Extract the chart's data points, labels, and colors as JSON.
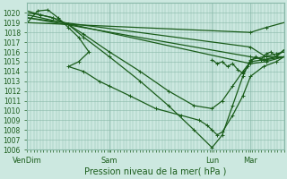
{
  "title": "",
  "xlabel": "Pression niveau de la mer( hPa )",
  "ylabel": "",
  "bg_color": "#cce8e0",
  "grid_color": "#88b8a8",
  "line_color": "#1a5c1a",
  "ylim": [
    1006,
    1021
  ],
  "yticks": [
    1006,
    1007,
    1008,
    1009,
    1010,
    1011,
    1012,
    1013,
    1014,
    1015,
    1016,
    1017,
    1018,
    1019,
    1020
  ],
  "xtick_labels": [
    "VenDim",
    "Sam",
    "Lun",
    "Mar"
  ],
  "xtick_positions": [
    0.0,
    0.32,
    0.72,
    0.87
  ],
  "series": [
    {
      "x": [
        0.0,
        0.87,
        0.93,
        1.0
      ],
      "y": [
        1019.0,
        1018.0,
        1018.5,
        1019.0
      ]
    },
    {
      "x": [
        0.0,
        0.87,
        0.93,
        1.0
      ],
      "y": [
        1019.5,
        1016.5,
        1015.5,
        1015.5
      ]
    },
    {
      "x": [
        0.0,
        0.87,
        0.93,
        1.0
      ],
      "y": [
        1019.5,
        1015.5,
        1015.2,
        1015.5
      ]
    },
    {
      "x": [
        0.0,
        0.87,
        0.93,
        1.0
      ],
      "y": [
        1019.8,
        1014.8,
        1015.0,
        1015.5
      ]
    },
    {
      "x": [
        0.0,
        0.05,
        0.1,
        0.16,
        0.22,
        0.32,
        0.44,
        0.55,
        0.65,
        0.72,
        0.76,
        0.8,
        0.84,
        0.87,
        0.92,
        0.97,
        1.0
      ],
      "y": [
        1020.0,
        1019.8,
        1019.5,
        1018.8,
        1017.5,
        1015.5,
        1013.0,
        1010.5,
        1008.0,
        1006.2,
        1007.5,
        1010.5,
        1013.5,
        1015.2,
        1015.5,
        1015.8,
        1016.0
      ]
    },
    {
      "x": [
        0.0,
        0.05,
        0.1,
        0.16,
        0.22,
        0.32,
        0.44,
        0.55,
        0.65,
        0.72,
        0.76,
        0.8,
        0.84,
        0.87,
        0.92,
        0.97,
        1.0
      ],
      "y": [
        1020.2,
        1019.8,
        1019.5,
        1018.8,
        1017.8,
        1016.0,
        1014.0,
        1012.0,
        1010.5,
        1010.2,
        1011.0,
        1012.5,
        1014.0,
        1015.0,
        1015.2,
        1015.5,
        1016.2
      ]
    },
    {
      "x": [
        0.0,
        0.04,
        0.08,
        0.12,
        0.16,
        0.2,
        0.24,
        0.2,
        0.16,
        0.22,
        0.28,
        0.32,
        0.4,
        0.5,
        0.6,
        0.67,
        0.7,
        0.72,
        0.74,
        0.76,
        0.8,
        0.84,
        0.87,
        0.92,
        0.97,
        1.0
      ],
      "y": [
        1019.0,
        1020.2,
        1020.3,
        1019.5,
        1018.5,
        1017.5,
        1016.0,
        1015.0,
        1014.5,
        1014.0,
        1013.0,
        1012.5,
        1011.5,
        1010.2,
        1009.5,
        1009.0,
        1008.5,
        1008.0,
        1007.5,
        1007.8,
        1009.5,
        1011.5,
        1013.5,
        1014.5,
        1015.0,
        1015.5
      ]
    },
    {
      "x": [
        0.72,
        0.74,
        0.76,
        0.78,
        0.8,
        0.82,
        0.84,
        0.86,
        0.87,
        0.89,
        0.91,
        0.93,
        0.95,
        0.97,
        1.0
      ],
      "y": [
        1015.2,
        1014.8,
        1015.0,
        1014.5,
        1014.8,
        1014.2,
        1013.8,
        1014.5,
        1015.0,
        1015.5,
        1015.2,
        1015.8,
        1016.0,
        1015.5,
        1016.2
      ]
    }
  ]
}
